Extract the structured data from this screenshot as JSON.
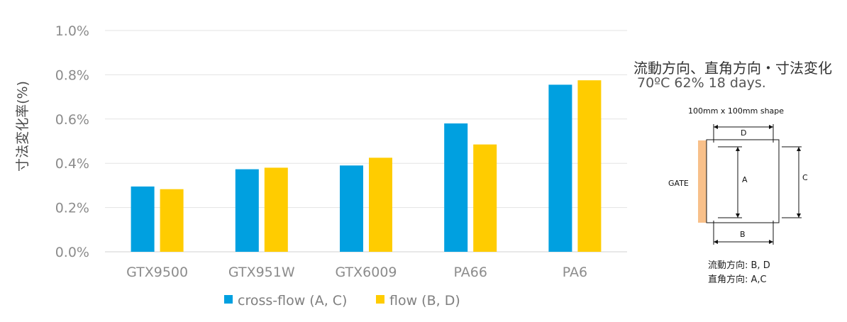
{
  "chart_data": {
    "type": "bar",
    "categories": [
      "GTX9500",
      "GTX951W",
      "GTX6009",
      "PA66",
      "PA6"
    ],
    "series": [
      {
        "name": "cross-flow (A, C)",
        "color": "#00a0e0",
        "values": [
          0.295,
          0.373,
          0.39,
          0.58,
          0.755
        ]
      },
      {
        "name": "flow (B, D)",
        "color": "#ffcc00",
        "values": [
          0.283,
          0.38,
          0.425,
          0.485,
          0.775
        ]
      }
    ],
    "ylabel": "寸法変化率(%)",
    "yticks": [
      "0.0%",
      "0.2%",
      "0.4%",
      "0.6%",
      "0.8%",
      "1.0%"
    ],
    "ylim": [
      0,
      1.0
    ],
    "grid": true,
    "legend": "bottom"
  },
  "side": {
    "title": "流動方向、直角方向・寸法変化",
    "condition": "70ºC 62% 18 days.",
    "diagram": {
      "shape_label": "100mm x 100mm shape",
      "gate_label": "GATE",
      "labels": {
        "a": "A",
        "b": "B",
        "c": "C",
        "d": "D"
      },
      "flow_note": "流動方向: B, D",
      "cross_note": "直角方向: A,C",
      "gate_color": "#f8c08a"
    }
  }
}
